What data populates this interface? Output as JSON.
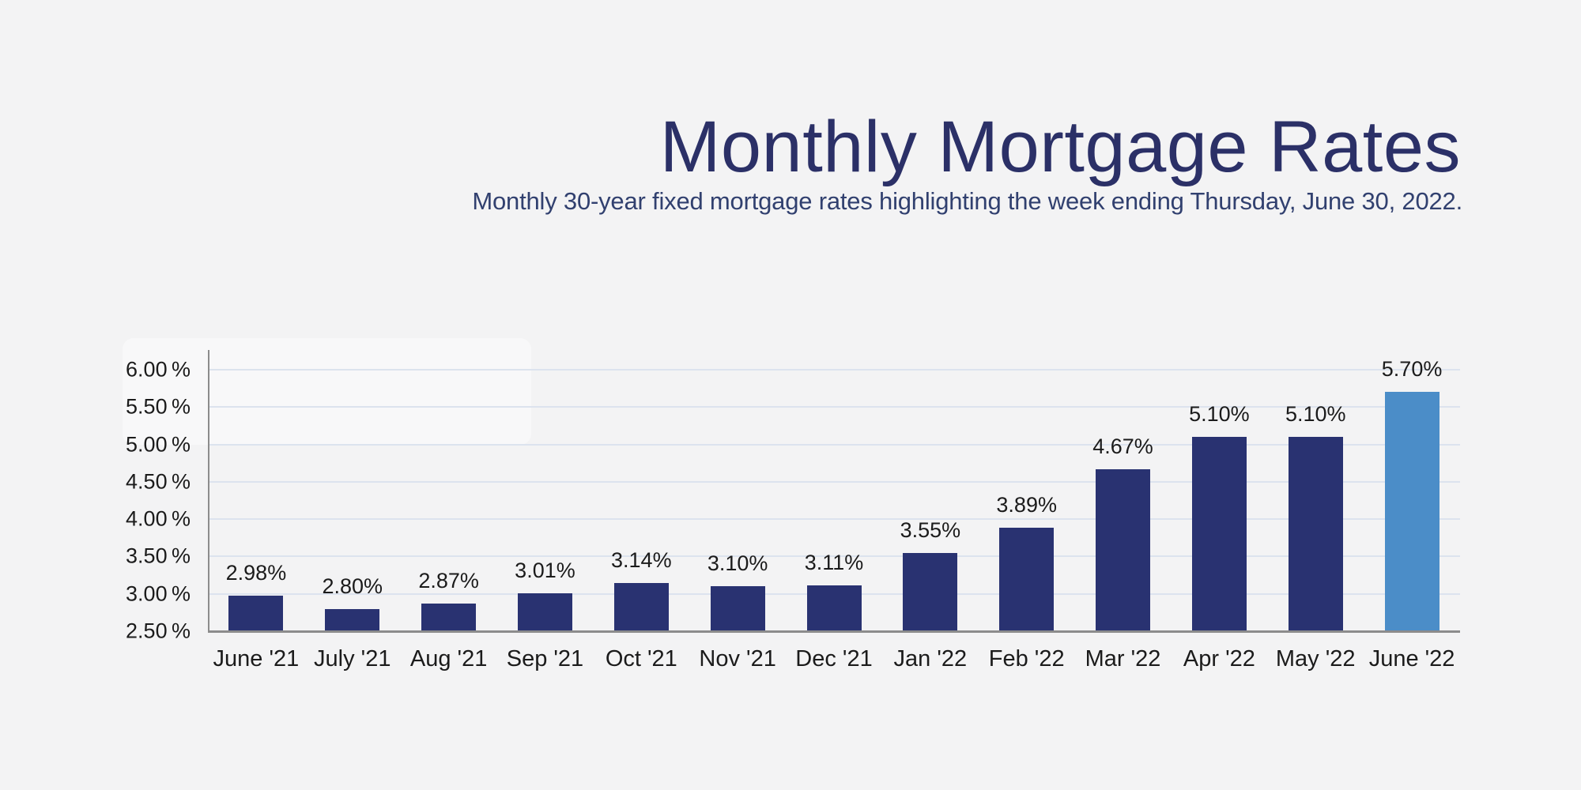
{
  "page": {
    "background": "#f3f3f4",
    "panel_color": "#f8f8f9"
  },
  "header": {
    "title": "Monthly Mortgage Rates",
    "subtitle": "Monthly 30-year fixed mortgage rates highlighting the week ending Thursday, June 30, 2022.",
    "title_color": "#2b3067",
    "subtitle_color": "#31406f"
  },
  "chart_data": {
    "type": "bar",
    "title": "Monthly Mortgage Rates",
    "subtitle": "Monthly 30-year fixed mortgage rates highlighting the week ending Thursday, June 30, 2022.",
    "categories": [
      "June '21",
      "July '21",
      "Aug '21",
      "Sep '21",
      "Oct '21",
      "Nov '21",
      "Dec '21",
      "Jan '22",
      "Feb '22",
      "Mar '22",
      "Apr '22",
      "May '22",
      "June '22"
    ],
    "values": [
      2.98,
      2.8,
      2.87,
      3.01,
      3.14,
      3.1,
      3.11,
      3.55,
      3.89,
      4.67,
      5.1,
      5.1,
      5.7
    ],
    "data_labels": [
      "2.98%",
      "2.80%",
      "2.87%",
      "3.01%",
      "3.14%",
      "3.10%",
      "3.11%",
      "3.55%",
      "3.89%",
      "4.67%",
      "5.10%",
      "5.10%",
      "5.70%"
    ],
    "y_tick_labels": [
      "6.00 %",
      "5.50 %",
      "5.00 %",
      "4.50 %",
      "4.00 %",
      "3.50 %",
      "3.00 %",
      "2.50 %"
    ],
    "y_tick_values": [
      6.0,
      5.5,
      5.0,
      4.5,
      4.0,
      3.5,
      3.0,
      2.5
    ],
    "ylim": [
      2.5,
      6.0
    ],
    "y_tick_step": 0.5,
    "xlabel": "",
    "ylabel": "",
    "grid": true,
    "legend": "none",
    "bar_color": "#293271",
    "highlight_color": "#4b8dc8",
    "highlight_index": 12,
    "gridline_color": "#dce3ee",
    "axis_color": "#8c8c8c",
    "tick_label_color": "#1b1b1b",
    "data_label_color": "#1b1b1b",
    "category_label_color": "#1b1b1b"
  }
}
